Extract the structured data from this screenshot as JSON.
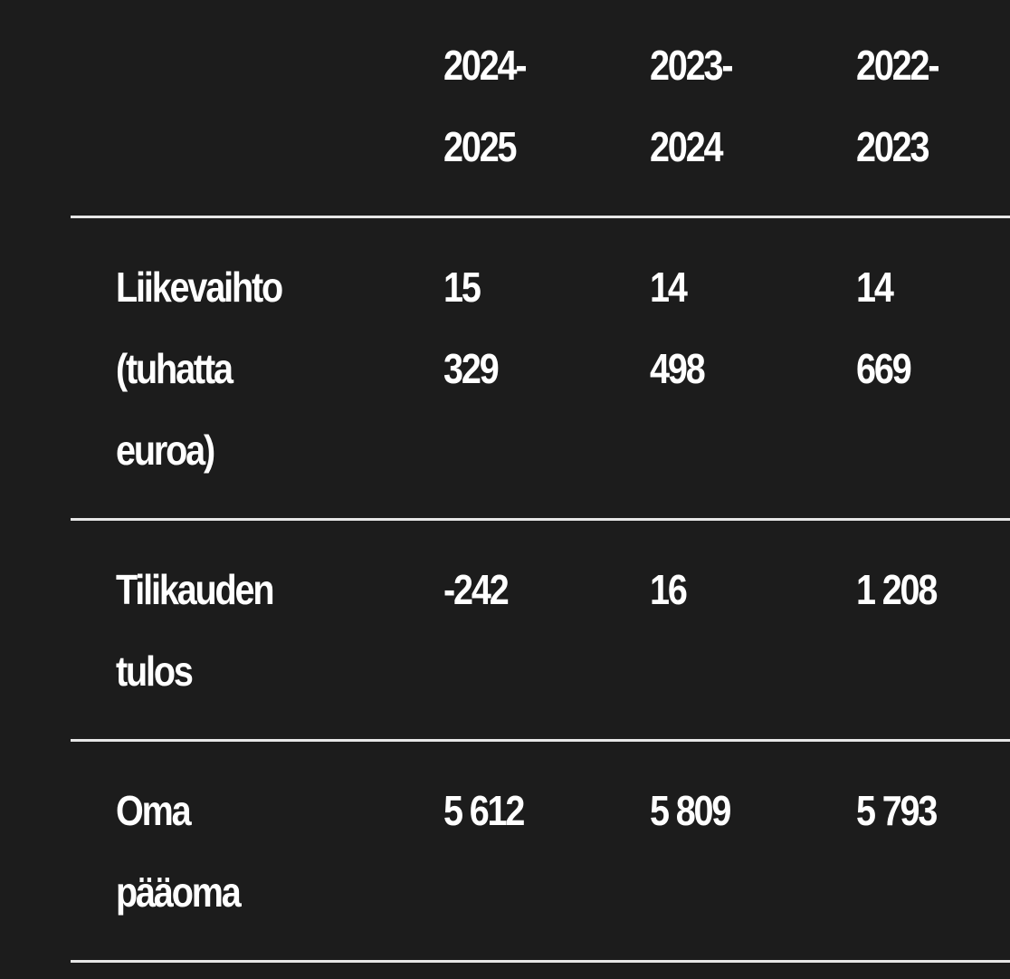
{
  "table": {
    "columns": [
      "2024-\n2025",
      "2023-\n2024",
      "2022-\n2023"
    ],
    "rows": [
      {
        "label": "Liikevaihto\n(tuhatta\neuroa)",
        "values": [
          "15\n329",
          "14\n498",
          "14\n669"
        ]
      },
      {
        "label": "Tilikauden\ntulos",
        "values": [
          "-242",
          "16",
          "1 208"
        ]
      },
      {
        "label": "Oma\npääoma",
        "values": [
          "5 612",
          "5 809",
          "5 793"
        ]
      }
    ]
  }
}
